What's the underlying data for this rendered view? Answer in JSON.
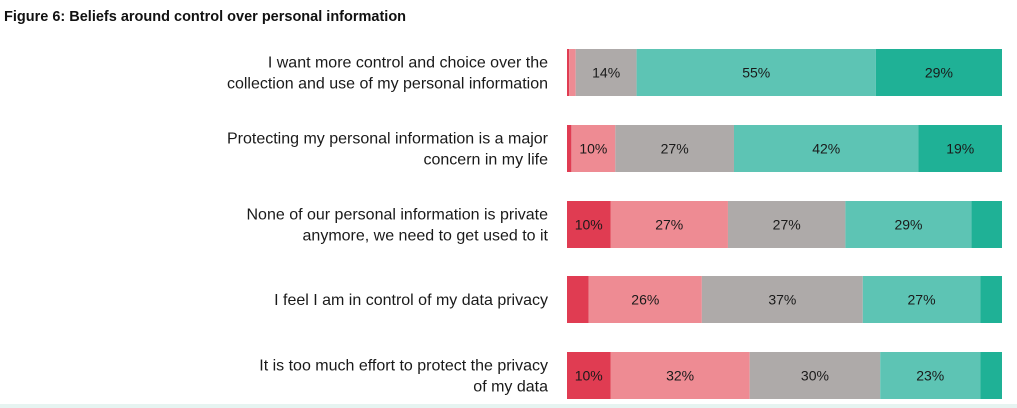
{
  "figure": {
    "title": "Figure 6: Beliefs around control over personal information"
  },
  "colors": {
    "strongly_disagree": "#e03c52",
    "disagree": "#ee8b93",
    "neutral": "#aeaaa9",
    "agree": "#5dc4b4",
    "strongly_agree": "#1fb196"
  },
  "chart_data": {
    "type": "bar",
    "orientation": "horizontal",
    "stacked": true,
    "normalized_to_100": true,
    "xlim": [
      0,
      100
    ],
    "grid": false,
    "legend": "none",
    "categories": [
      [
        "I want more control and choice over the",
        "collection and use of my personal information"
      ],
      [
        "Protecting my personal information is a major",
        "concern in my life"
      ],
      [
        "None of our personal information is private",
        "anymore, we need to get used to it"
      ],
      [
        "I feel I am in control of my data privacy"
      ],
      [
        "It is too much effort to protect the privacy",
        "of my data"
      ]
    ],
    "series": [
      {
        "key": "strongly_disagree",
        "values": [
          0.5,
          1,
          10,
          5,
          10
        ],
        "labels": [
          "",
          "",
          "10%",
          "",
          "10%"
        ]
      },
      {
        "key": "disagree",
        "values": [
          1.5,
          10,
          27,
          26,
          32
        ],
        "labels": [
          "",
          "10%",
          "27%",
          "26%",
          "32%"
        ]
      },
      {
        "key": "neutral",
        "values": [
          14,
          27,
          27,
          37,
          30
        ],
        "labels": [
          "14%",
          "27%",
          "27%",
          "37%",
          "30%"
        ]
      },
      {
        "key": "agree",
        "values": [
          55,
          42,
          29,
          27,
          23
        ],
        "labels": [
          "55%",
          "42%",
          "29%",
          "27%",
          "23%"
        ]
      },
      {
        "key": "strongly_agree",
        "values": [
          29,
          19,
          7,
          5,
          5
        ],
        "labels": [
          "29%",
          "19%",
          "",
          "",
          ""
        ]
      }
    ]
  }
}
